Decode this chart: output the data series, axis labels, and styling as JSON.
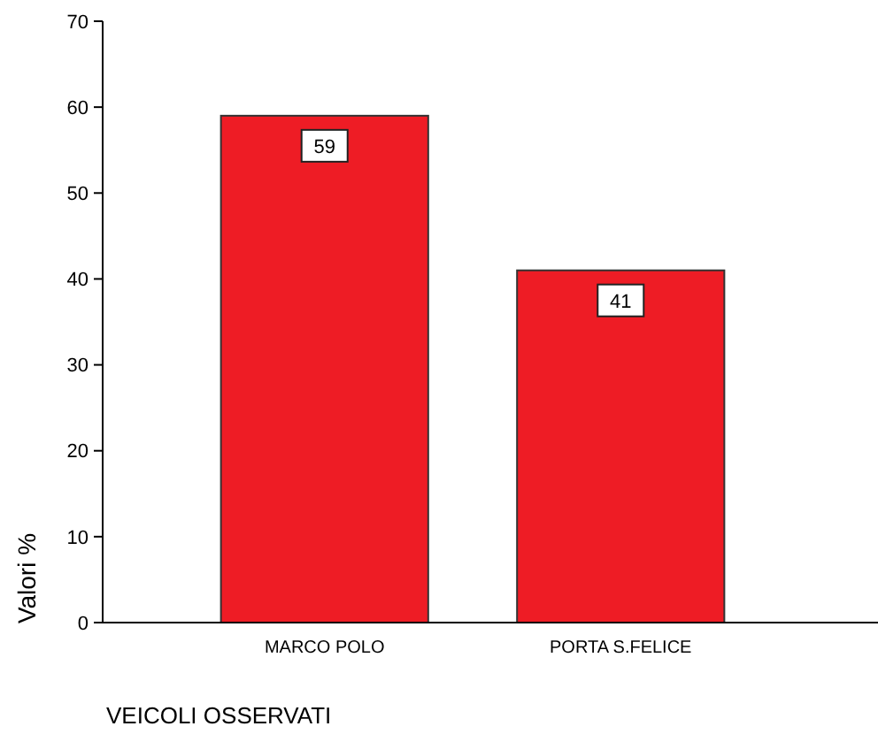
{
  "chart_data": {
    "type": "bar",
    "xlabel": "VEICOLI OSSERVATI",
    "ylabel": "Valori %",
    "categories": [
      "MARCO POLO",
      "PORTA S.FELICE"
    ],
    "values": [
      59,
      41
    ],
    "color": "#ee1c25",
    "ylim": [
      0,
      70
    ],
    "yticks": [
      0,
      10,
      20,
      30,
      40,
      50,
      60,
      70
    ],
    "data_labels": true,
    "grid": false
  }
}
